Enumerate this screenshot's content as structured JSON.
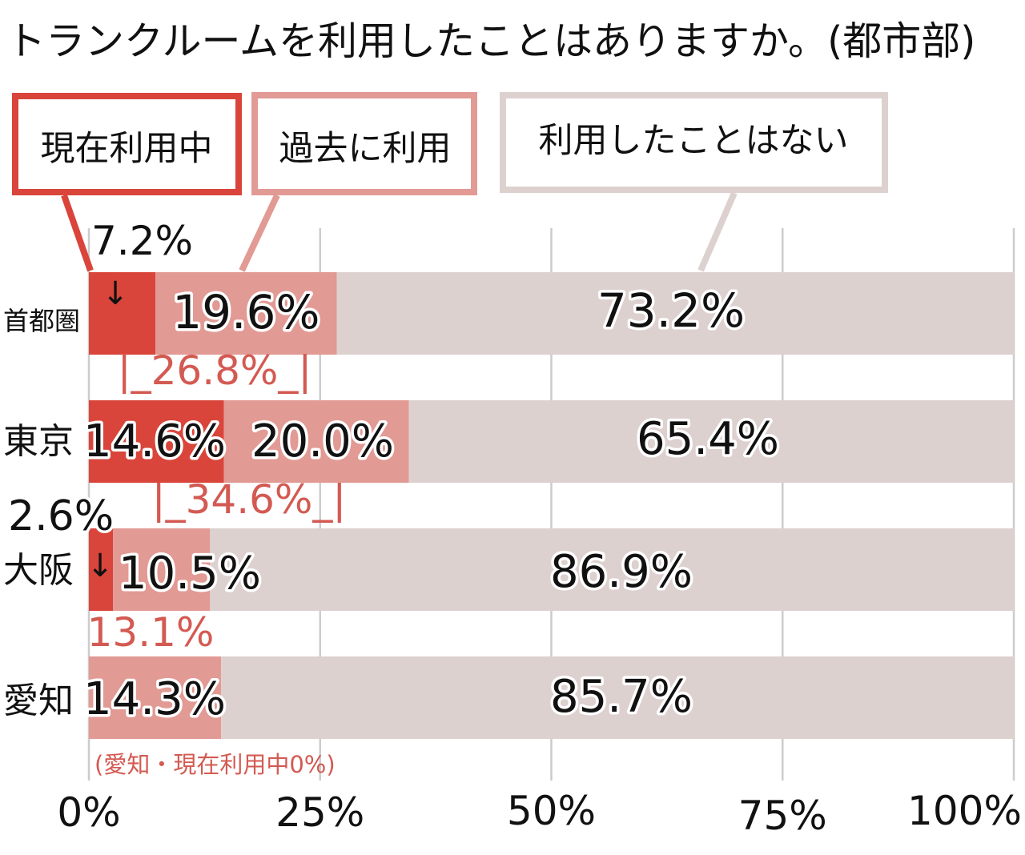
{
  "chart_data": {
    "type": "bar",
    "orientation": "horizontal",
    "stacked": true,
    "title": "トランクルームを利用したことはありますか。(都市部)",
    "categories": [
      "首都圏",
      "東京",
      "大阪",
      "愛知"
    ],
    "series": [
      {
        "name": "現在利用中",
        "values": [
          7.2,
          14.6,
          2.6,
          0
        ],
        "color": "#d9453b"
      },
      {
        "name": "過去に利用",
        "values": [
          19.6,
          20.0,
          10.5,
          14.3
        ],
        "color": "#e29a94"
      },
      {
        "name": "利用したことはない",
        "values": [
          73.2,
          65.4,
          86.9,
          85.7
        ],
        "color": "#ddd1d0"
      }
    ],
    "value_labels": [
      [
        "7.2%",
        "19.6%",
        "73.2%"
      ],
      [
        "14.6%",
        "20.0%",
        "65.4%"
      ],
      [
        "2.6%",
        "10.5%",
        "86.9%"
      ],
      [
        "",
        "14.3%",
        "85.7%"
      ]
    ],
    "subtotal_labels": [
      "|_26.8%_|",
      "|_34.6%_|",
      "13.1%",
      ""
    ],
    "footnote": "(愛知・現在利用中0%)",
    "x_ticks": [
      "0%",
      "25%",
      "50%",
      "75%",
      "100%"
    ],
    "xlim": [
      0,
      100
    ],
    "grid": true,
    "legend_position": "top",
    "subtotal_color": "#d35a52",
    "arrow_glyph": "↓"
  }
}
